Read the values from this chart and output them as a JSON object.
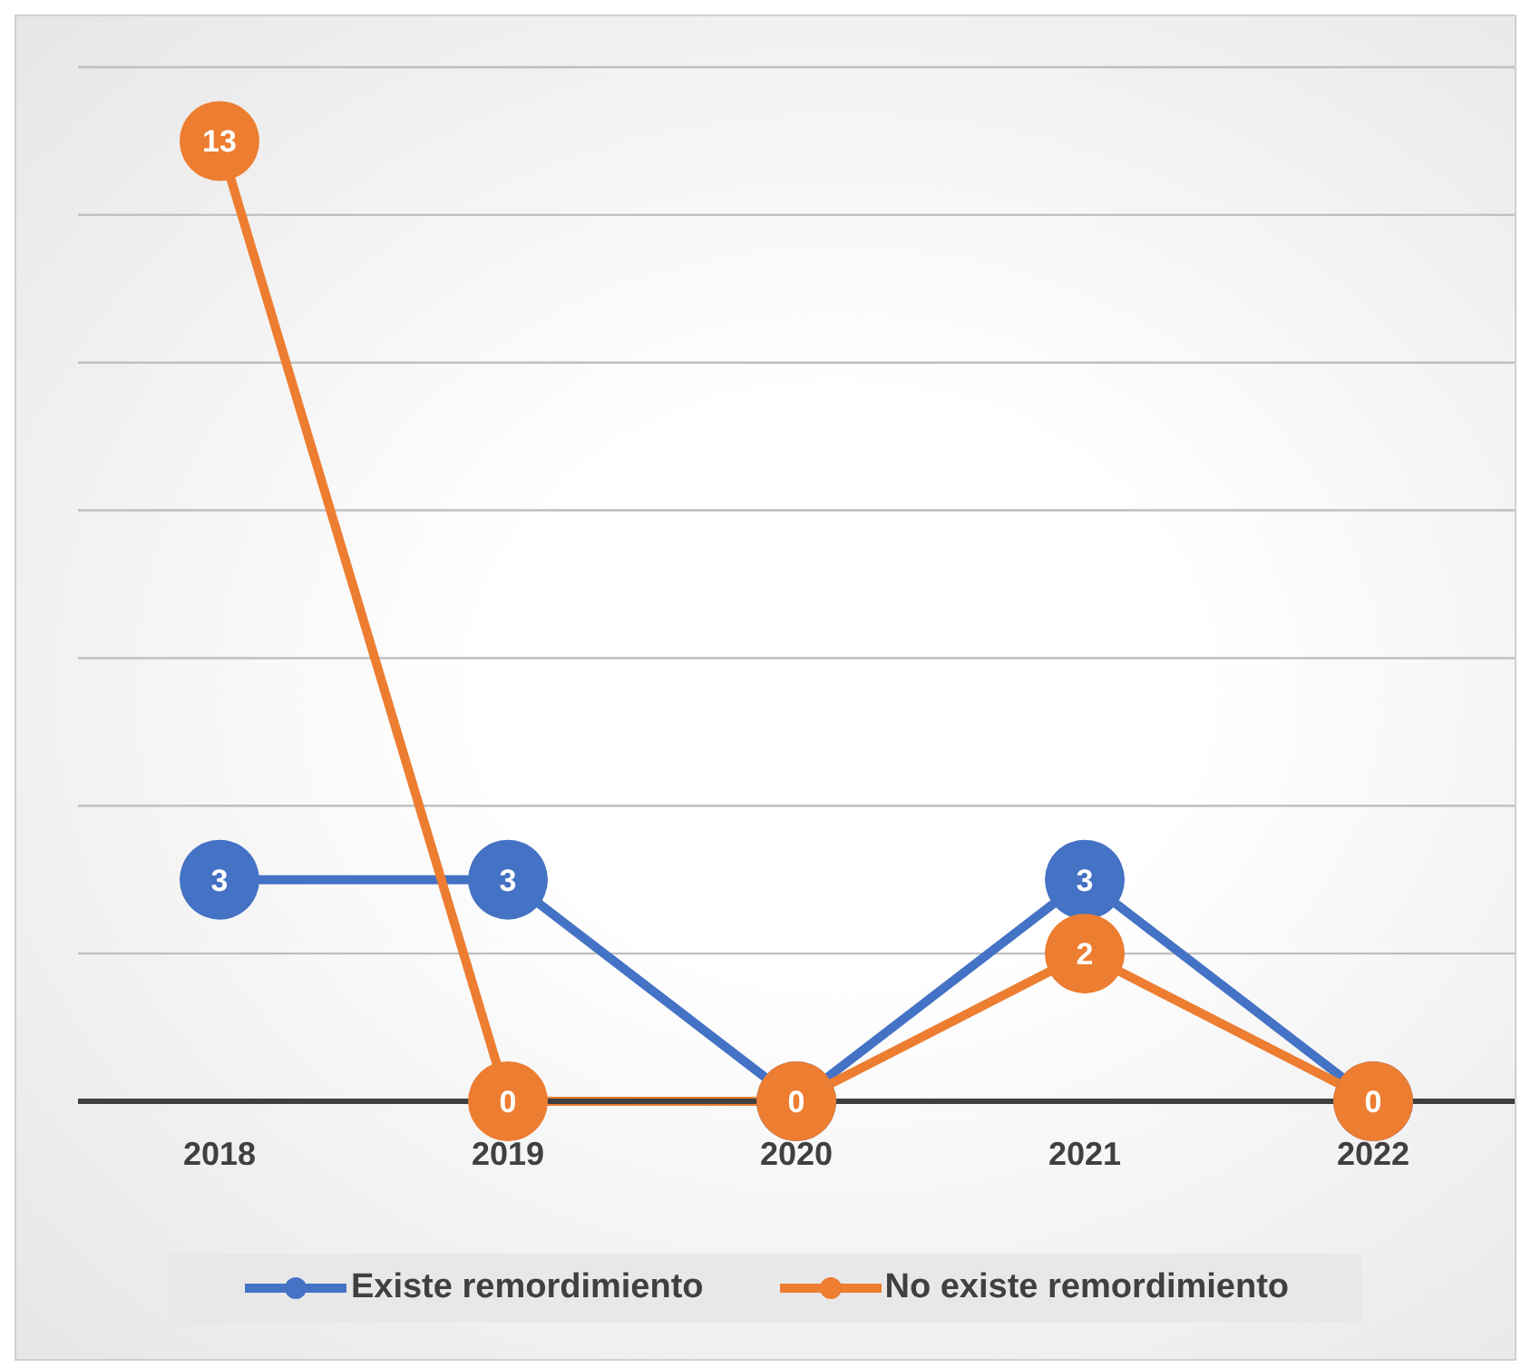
{
  "chart_data": {
    "type": "line",
    "categories": [
      "2018",
      "2019",
      "2020",
      "2021",
      "2022"
    ],
    "series": [
      {
        "name": "Existe remordimiento",
        "color": "#4472c4",
        "values": [
          3,
          3,
          0,
          3,
          0
        ],
        "value_labels": [
          "3",
          "3",
          null,
          "3",
          null
        ]
      },
      {
        "name": "No existe remordimiento",
        "color": "#ed7d31",
        "values": [
          13,
          0,
          0,
          2,
          0
        ],
        "value_labels": [
          "13",
          "0",
          "0",
          "2",
          "0"
        ]
      }
    ],
    "ylim": [
      0,
      14
    ],
    "yticks": [
      {
        "value": 0,
        "label": null
      },
      {
        "value": 2,
        "label": null
      },
      {
        "value": 4,
        "label": null
      },
      {
        "value": 6,
        "label": null
      },
      {
        "value": 8,
        "label": null
      },
      {
        "value": 10,
        "label": null
      },
      {
        "value": 12,
        "label": null
      },
      {
        "value": 14,
        "label": null
      }
    ],
    "grid": "y",
    "tick_labels": "x",
    "legend": "bottom",
    "marker": "circle",
    "line_style": "solid"
  }
}
